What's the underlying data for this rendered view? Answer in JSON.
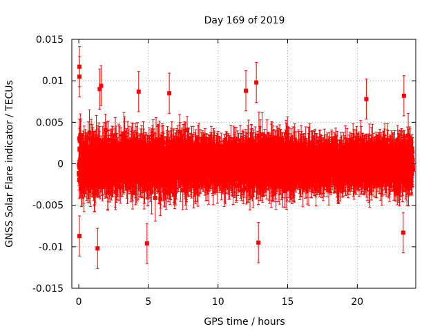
{
  "chart_data": {
    "type": "scatter",
    "title": "Day 169 of 2019",
    "xlabel": "GPS time / hours",
    "ylabel": "GNSS Solar Flare indicator / TECUs",
    "xlim": [
      -0.5,
      24.2
    ],
    "ylim": [
      -0.015,
      0.015
    ],
    "x_ticks": [
      0,
      5,
      10,
      15,
      20
    ],
    "x_tick_labels": [
      "0",
      "5",
      "10",
      "15",
      "20"
    ],
    "y_ticks": [
      -0.015,
      -0.01,
      -0.005,
      0,
      0.005,
      0.01,
      0.015
    ],
    "y_tick_labels": [
      "-0.015",
      "-0.01",
      "-0.005",
      "0",
      "0.005",
      "0.01",
      "0.015"
    ],
    "grid": true,
    "series": [
      {
        "name": "GNSS Solar Flare indicator",
        "color": "#ff0000",
        "marker": "square",
        "error_bars": true,
        "x_start": 0,
        "x_end": 24,
        "n_points": 2880,
        "typical_error": 0.0022,
        "envelope": {
          "x": [
            0,
            0.5,
            1,
            2,
            3,
            4,
            5,
            6,
            7,
            8,
            9,
            10,
            11,
            12,
            13,
            14,
            15,
            16,
            17,
            18,
            19,
            20,
            21,
            22,
            23,
            24
          ],
          "spread": [
            0.0055,
            0.0055,
            0.005,
            0.0052,
            0.0052,
            0.005,
            0.005,
            0.0052,
            0.005,
            0.0045,
            0.0038,
            0.0036,
            0.0036,
            0.0046,
            0.0048,
            0.0046,
            0.0044,
            0.004,
            0.0038,
            0.0036,
            0.0034,
            0.0034,
            0.0036,
            0.0042,
            0.0048,
            0.0045
          ]
        },
        "outliers": [
          {
            "x": 0.05,
            "y": 0.0117
          },
          {
            "x": 0.05,
            "y": 0.0105
          },
          {
            "x": 0.05,
            "y": -0.0087
          },
          {
            "x": 1.35,
            "y": -0.0102
          },
          {
            "x": 1.6,
            "y": 0.0094
          },
          {
            "x": 1.5,
            "y": 0.009
          },
          {
            "x": 4.3,
            "y": 0.0087
          },
          {
            "x": 4.9,
            "y": -0.0096
          },
          {
            "x": 6.5,
            "y": 0.0085
          },
          {
            "x": 12.9,
            "y": -0.0095
          },
          {
            "x": 12.75,
            "y": 0.0098
          },
          {
            "x": 12.0,
            "y": 0.0088
          },
          {
            "x": 20.65,
            "y": 0.0078
          },
          {
            "x": 23.35,
            "y": 0.0082
          },
          {
            "x": 23.3,
            "y": -0.0083
          }
        ]
      }
    ]
  }
}
